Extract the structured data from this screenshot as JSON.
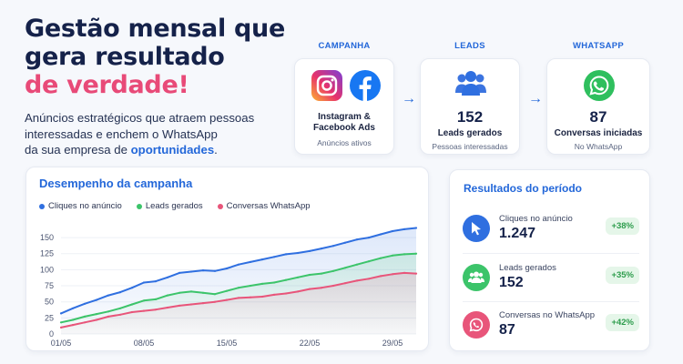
{
  "hero": {
    "title_line1": "Gestão mensal que",
    "title_line2": "gera resultado",
    "title_accent": "de verdade!",
    "desc_line1": "Anúncios estratégicos que atraem pessoas",
    "desc_line2": "interessadas e enchem o WhatsApp",
    "desc_line3_pre": "da sua empresa de ",
    "desc_highlight": "oportunidades",
    "desc_line3_post": "."
  },
  "flow": {
    "campaign": {
      "label": "CAMPANHA",
      "title_line1": "Instagram &",
      "title_line2": "Facebook Ads",
      "sub": "Anúncios ativos",
      "icons": [
        "instagram-icon",
        "facebook-icon"
      ]
    },
    "leads": {
      "label": "LEADS",
      "value": "152",
      "title": "Leads gerados",
      "sub": "Pessoas interessadas",
      "icon": "people-icon"
    },
    "whatsapp": {
      "label": "WHATSAPP",
      "value": "87",
      "title": "Conversas iniciadas",
      "sub": "No WhatsApp",
      "icon": "whatsapp-icon"
    }
  },
  "chart_data": {
    "type": "area",
    "title": "Desempenho da campanha",
    "x_ticks": [
      "01/05",
      "08/05",
      "15/05",
      "22/05",
      "29/05"
    ],
    "y_ticks": [
      0,
      25,
      50,
      75,
      100,
      125,
      150
    ],
    "ylim": [
      0,
      160
    ],
    "x_days": [
      1,
      2,
      3,
      4,
      5,
      6,
      7,
      8,
      9,
      10,
      11,
      12,
      13,
      14,
      15,
      16,
      17,
      18,
      19,
      20,
      21,
      22,
      23,
      24,
      25,
      26,
      27,
      28,
      29,
      30,
      31
    ],
    "series": [
      {
        "name": "Cliques no anúncio",
        "color": "#2f6fe0",
        "values": [
          32,
          40,
          47,
          53,
          60,
          65,
          72,
          80,
          82,
          88,
          95,
          97,
          99,
          98,
          102,
          108,
          112,
          116,
          120,
          124,
          126,
          129,
          133,
          137,
          142,
          147,
          150,
          155,
          160,
          163,
          165
        ]
      },
      {
        "name": "Leads gerados",
        "color": "#3cc46a",
        "values": [
          18,
          22,
          27,
          31,
          35,
          40,
          46,
          52,
          54,
          60,
          64,
          66,
          64,
          62,
          67,
          72,
          75,
          78,
          80,
          84,
          88,
          92,
          94,
          98,
          103,
          108,
          113,
          118,
          122,
          124,
          125
        ]
      },
      {
        "name": "Conversas WhatsApp",
        "color": "#e8557a",
        "values": [
          10,
          14,
          18,
          22,
          27,
          30,
          34,
          36,
          38,
          41,
          44,
          46,
          48,
          50,
          53,
          56,
          57,
          58,
          61,
          63,
          66,
          70,
          72,
          75,
          79,
          83,
          86,
          90,
          93,
          95,
          94
        ]
      }
    ],
    "grid": true,
    "legend": "top-left"
  },
  "results": {
    "title": "Resultados do período",
    "items": [
      {
        "label": "Cliques no anúncio",
        "value": "1.247",
        "change": "+38%",
        "color": "#2f6fe0",
        "icon": "cursor-icon"
      },
      {
        "label": "Leads gerados",
        "value": "152",
        "change": "+35%",
        "color": "#3cc46a",
        "icon": "people-icon"
      },
      {
        "label": "Conversas no WhatsApp",
        "value": "87",
        "change": "+42%",
        "color": "#e8557a",
        "icon": "whatsapp-icon"
      }
    ]
  }
}
